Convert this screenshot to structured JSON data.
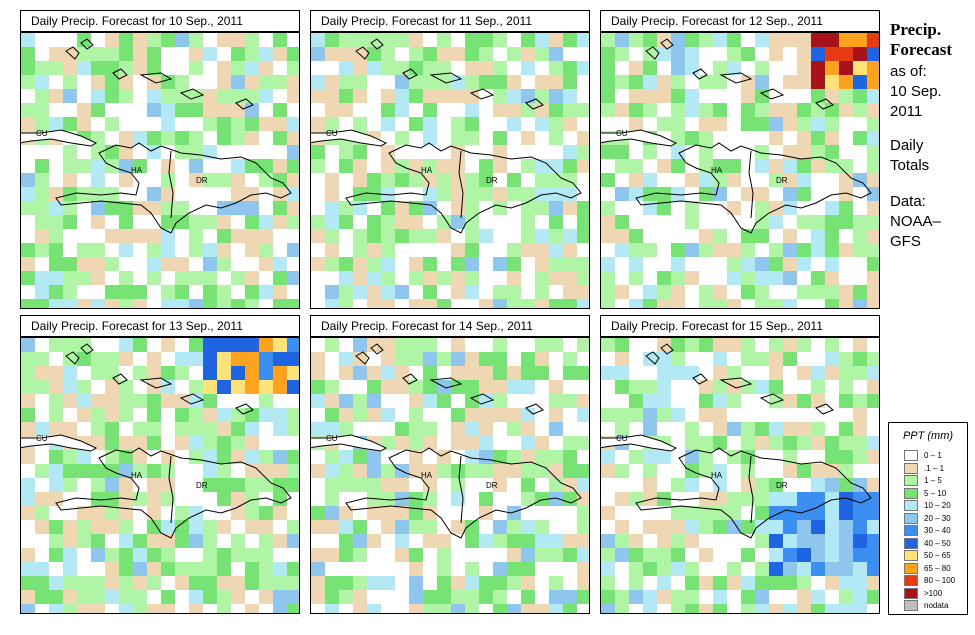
{
  "panels": [
    {
      "title": "Daily Precip. Forecast for  10 Sep., 2011",
      "seed": 11,
      "hot": null
    },
    {
      "title": "Daily Precip. Forecast for  11 Sep., 2011",
      "seed": 23,
      "hot": null
    },
    {
      "title": "Daily Precip. Forecast for  12 Sep., 2011",
      "seed": 37,
      "hot": "ne-strong"
    },
    {
      "title": "Daily Precip. Forecast for  13 Sep., 2011",
      "seed": 41,
      "hot": "ne-medium"
    },
    {
      "title": "Daily Precip. Forecast for  14 Sep., 2011",
      "seed": 53,
      "hot": null
    },
    {
      "title": "Daily Precip. Forecast for  15 Sep., 2011",
      "seed": 67,
      "hot": "se-blue"
    }
  ],
  "map_labels": {
    "cu": "CU",
    "ha": "HA",
    "dr": "DR"
  },
  "side": {
    "title_line1": "Precip.",
    "title_line2": "Forecast",
    "asof": "as of:",
    "date_line1": "10 Sep.",
    "date_line2": "2011",
    "daily_line1": "Daily",
    "daily_line2": "Totals",
    "data_line1": "Data:",
    "data_line2": "NOAA–",
    "data_line3": "GFS"
  },
  "legend": {
    "title": "PPT (mm)",
    "items": [
      {
        "label": "0 – 1",
        "color": "#ffffff"
      },
      {
        "label": ".1 – 1",
        "color": "#efd7b4"
      },
      {
        "label": "1 – 5",
        "color": "#b0f5a5"
      },
      {
        "label": "5 – 10",
        "color": "#76e374"
      },
      {
        "label": "10 – 20",
        "color": "#b3e9f5"
      },
      {
        "label": "20 – 30",
        "color": "#8fc6ee"
      },
      {
        "label": "30 – 40",
        "color": "#3b8ff0"
      },
      {
        "label": "40 – 50",
        "color": "#1f64e0"
      },
      {
        "label": "50 – 65",
        "color": "#ffe27a"
      },
      {
        "label": "65 – 80",
        "color": "#ffa31f"
      },
      {
        "label": "80 – 100",
        "color": "#e63a12"
      },
      {
        "label": ">100",
        "color": "#a8121b"
      },
      {
        "label": "nodata",
        "color": "#bfbfbf"
      }
    ]
  }
}
